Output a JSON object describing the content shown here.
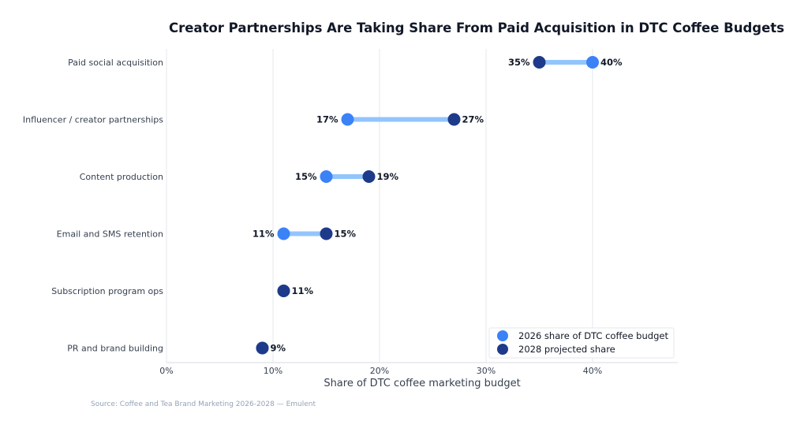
{
  "chart_data": {
    "type": "dumbbell",
    "title": "Creator Partnerships Are Taking Share From Paid Acquisition in DTC Coffee Budgets",
    "xlabel": "Share of DTC coffee marketing budget",
    "ylabel": "",
    "xlim": [
      0,
      48
    ],
    "xticks": [
      0,
      10,
      20,
      30,
      40
    ],
    "xtick_labels": [
      "0%",
      "10%",
      "20%",
      "30%",
      "40%"
    ],
    "grid": "vertical",
    "legend_placement": "bottom-right",
    "categories": [
      "Paid social acquisition",
      "Influencer / creator partnerships",
      "Content production",
      "Email and SMS retention",
      "Subscription program ops",
      "PR and brand building"
    ],
    "series": [
      {
        "name": "2026 share of DTC coffee budget",
        "color": "#3b82f6",
        "values": [
          40,
          17,
          15,
          11,
          11,
          9
        ]
      },
      {
        "name": "2028 projected share",
        "color": "#1e3a8a",
        "values": [
          35,
          27,
          19,
          15,
          11,
          9
        ]
      }
    ],
    "connector_color": "#93c5fd",
    "source": "Source: Coffee and Tea Brand Marketing 2026-2028 — Emulent"
  }
}
